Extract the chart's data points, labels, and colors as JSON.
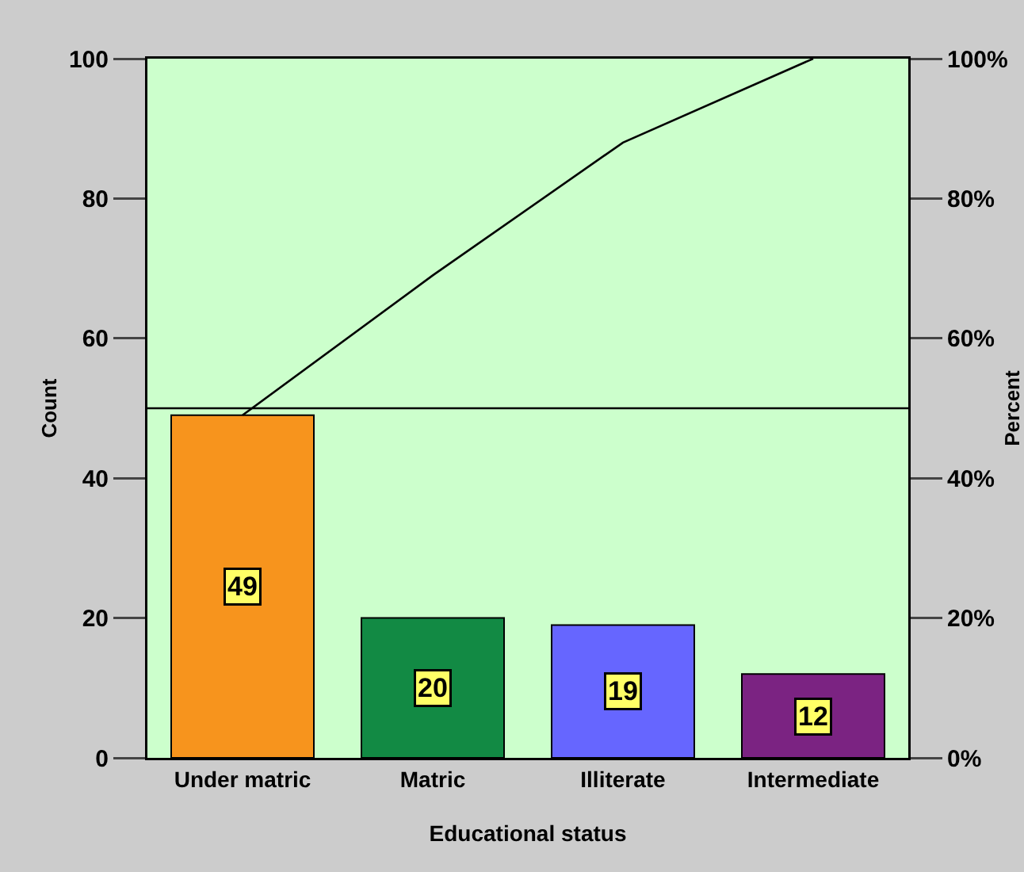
{
  "chart_data": {
    "type": "bar",
    "categories": [
      "Under matric",
      "Matric",
      "Illiterate",
      "Intermediate"
    ],
    "xlabel": "Educational status",
    "ylabel": "Count",
    "y2label": "Percent",
    "series": [
      {
        "colors": [
          "#f7941d",
          "#128a44",
          "#6666ff",
          "#7b2382"
        ],
        "values": [
          49,
          20,
          19,
          12
        ],
        "value_labels": [
          "49",
          "20",
          "19",
          "12"
        ]
      },
      {
        "type": "line",
        "axis": "y2",
        "color": "#000000",
        "values": [
          49,
          69,
          88,
          100
        ]
      }
    ],
    "ylim": [
      0,
      100
    ],
    "yticks": [
      0,
      20,
      40,
      60,
      80,
      100
    ],
    "y2lim": [
      0,
      100
    ],
    "y2ticks": [
      {
        "value": 0,
        "label": "0%"
      },
      {
        "value": 20,
        "label": "20%"
      },
      {
        "value": 40,
        "label": "40%"
      },
      {
        "value": 60,
        "label": "60%"
      },
      {
        "value": 80,
        "label": "80%"
      },
      {
        "value": 100,
        "label": "100%"
      }
    ],
    "ref_lines": [
      {
        "axis": "y",
        "value": 50,
        "color": "#000000"
      }
    ],
    "grid": false,
    "marker": "none",
    "line_style": "solid"
  }
}
